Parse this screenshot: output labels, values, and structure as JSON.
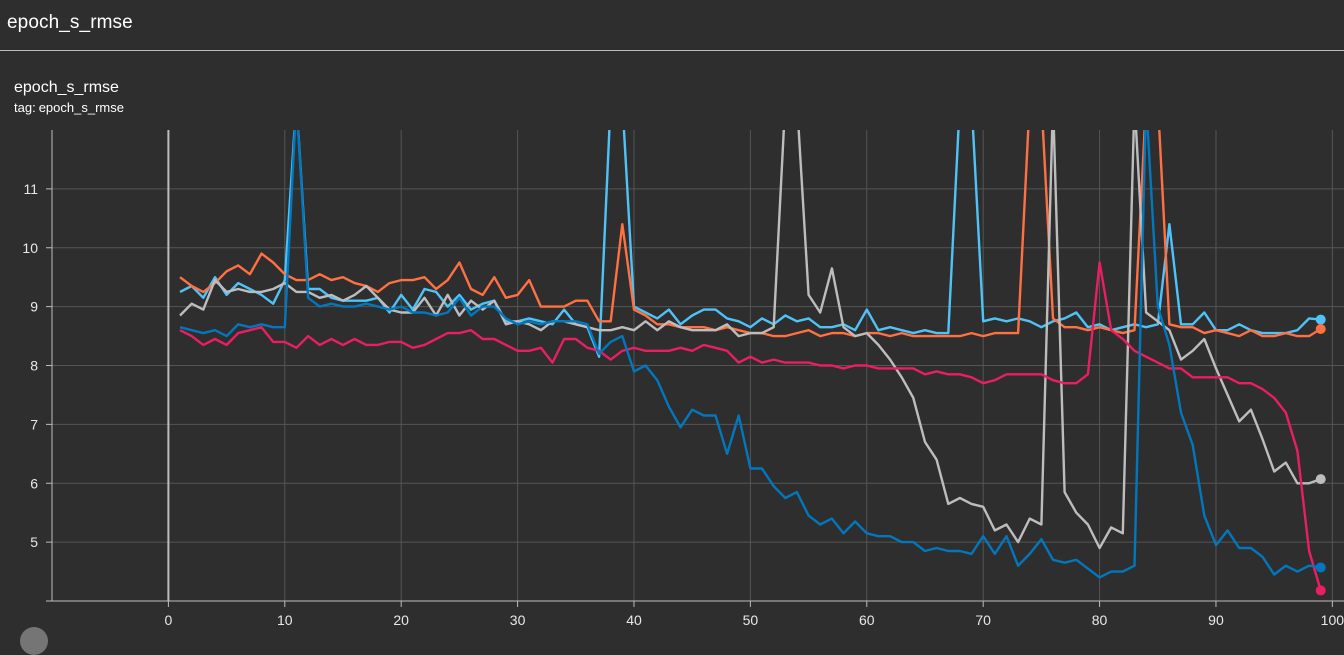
{
  "header": {
    "title": "epoch_s_rmse"
  },
  "card": {
    "title": "epoch_s_rmse",
    "tag_prefix": "tag:",
    "tag_value": "epoch_s_rmse"
  },
  "chart_data": {
    "type": "line",
    "title": "epoch_s_rmse",
    "xlabel": "",
    "ylabel": "",
    "xlim": [
      -10,
      101
    ],
    "ylim": [
      4.0,
      12.0
    ],
    "x_ticks": [
      0,
      10,
      20,
      30,
      40,
      50,
      60,
      70,
      80,
      90,
      100
    ],
    "y_ticks": [
      5,
      6,
      7,
      8,
      9,
      10,
      11
    ],
    "grid": true,
    "colors": {
      "background": "#2e2e2e",
      "grid": "#555555",
      "axis": "#bdbdbd"
    },
    "series": [
      {
        "color": "#4fc3f7",
        "x": [
          1,
          2,
          3,
          4,
          5,
          6,
          7,
          8,
          9,
          10,
          11,
          12,
          13,
          14,
          15,
          16,
          17,
          18,
          19,
          20,
          21,
          22,
          23,
          24,
          25,
          26,
          27,
          28,
          29,
          30,
          31,
          32,
          33,
          34,
          35,
          36,
          37,
          38,
          39,
          40,
          41,
          42,
          43,
          44,
          45,
          46,
          47,
          48,
          49,
          50,
          51,
          52,
          53,
          54,
          55,
          56,
          57,
          58,
          59,
          60,
          61,
          62,
          63,
          64,
          65,
          66,
          67,
          68,
          69,
          70,
          71,
          72,
          73,
          74,
          75,
          76,
          77,
          78,
          79,
          80,
          81,
          82,
          83,
          84,
          85,
          86,
          87,
          88,
          89,
          90,
          91,
          92,
          93,
          94,
          95,
          96,
          97,
          98,
          99
        ],
        "values": [
          9.25,
          9.35,
          9.15,
          9.5,
          9.2,
          9.4,
          9.3,
          9.2,
          9.05,
          9.45,
          12.5,
          9.3,
          9.3,
          9.15,
          9.1,
          9.1,
          9.1,
          9.15,
          8.9,
          9.2,
          8.95,
          9.3,
          9.25,
          9.0,
          9.2,
          8.95,
          9.05,
          9.1,
          8.75,
          8.75,
          8.8,
          8.75,
          8.7,
          8.95,
          8.7,
          8.65,
          8.15,
          12.5,
          12.5,
          9.0,
          8.9,
          8.8,
          8.95,
          8.7,
          8.85,
          8.95,
          8.95,
          8.8,
          8.75,
          8.65,
          8.8,
          8.7,
          8.85,
          8.75,
          8.8,
          8.65,
          8.65,
          8.7,
          8.6,
          8.95,
          8.6,
          8.65,
          8.6,
          8.55,
          8.6,
          8.55,
          8.55,
          12.5,
          12.5,
          8.75,
          8.8,
          8.75,
          8.8,
          8.75,
          8.65,
          8.75,
          8.8,
          8.9,
          8.65,
          8.7,
          8.6,
          8.65,
          8.7,
          8.65,
          8.7,
          10.4,
          8.7,
          8.7,
          8.9,
          8.6,
          8.6,
          8.7,
          8.6,
          8.55,
          8.55,
          8.55,
          8.6,
          8.8,
          8.78
        ]
      },
      {
        "color": "#ff7043",
        "x": [
          1,
          2,
          3,
          4,
          5,
          6,
          7,
          8,
          9,
          10,
          11,
          12,
          13,
          14,
          15,
          16,
          17,
          18,
          19,
          20,
          21,
          22,
          23,
          24,
          25,
          26,
          27,
          28,
          29,
          30,
          31,
          32,
          33,
          34,
          35,
          36,
          37,
          38,
          39,
          40,
          41,
          42,
          43,
          44,
          45,
          46,
          47,
          48,
          49,
          50,
          51,
          52,
          53,
          54,
          55,
          56,
          57,
          58,
          59,
          60,
          61,
          62,
          63,
          64,
          65,
          66,
          67,
          68,
          69,
          70,
          71,
          72,
          73,
          74,
          75,
          76,
          77,
          78,
          79,
          80,
          81,
          82,
          83,
          84,
          85,
          86,
          87,
          88,
          89,
          90,
          91,
          92,
          93,
          94,
          95,
          96,
          97,
          98,
          99
        ],
        "values": [
          9.5,
          9.35,
          9.25,
          9.4,
          9.6,
          9.7,
          9.55,
          9.9,
          9.75,
          9.55,
          9.45,
          9.45,
          9.55,
          9.45,
          9.5,
          9.4,
          9.35,
          9.25,
          9.4,
          9.45,
          9.45,
          9.5,
          9.3,
          9.45,
          9.75,
          9.3,
          9.2,
          9.5,
          9.15,
          9.2,
          9.45,
          9.0,
          9.0,
          9.0,
          9.1,
          9.1,
          8.75,
          8.75,
          10.4,
          8.95,
          8.85,
          8.7,
          8.7,
          8.65,
          8.65,
          8.65,
          8.6,
          8.65,
          8.6,
          8.55,
          8.55,
          8.5,
          8.5,
          8.55,
          8.6,
          8.5,
          8.55,
          8.55,
          8.5,
          8.55,
          8.55,
          8.5,
          8.55,
          8.5,
          8.5,
          8.5,
          8.5,
          8.5,
          8.55,
          8.5,
          8.55,
          8.55,
          8.55,
          12.5,
          12.5,
          8.8,
          8.65,
          8.65,
          8.6,
          8.65,
          8.6,
          8.55,
          8.6,
          12.5,
          12.5,
          8.7,
          8.65,
          8.65,
          8.55,
          8.6,
          8.55,
          8.5,
          8.6,
          8.5,
          8.5,
          8.55,
          8.5,
          8.5,
          8.62
        ]
      },
      {
        "color": "#bdbdbd",
        "x": [
          1,
          2,
          3,
          4,
          5,
          6,
          7,
          8,
          9,
          10,
          11,
          12,
          13,
          14,
          15,
          16,
          17,
          18,
          19,
          20,
          21,
          22,
          23,
          24,
          25,
          26,
          27,
          28,
          29,
          30,
          31,
          32,
          33,
          34,
          35,
          36,
          37,
          38,
          39,
          40,
          41,
          42,
          43,
          44,
          45,
          46,
          47,
          48,
          49,
          50,
          51,
          52,
          53,
          54,
          55,
          56,
          57,
          58,
          59,
          60,
          61,
          62,
          63,
          64,
          65,
          66,
          67,
          68,
          69,
          70,
          71,
          72,
          73,
          74,
          75,
          76,
          77,
          78,
          79,
          80,
          81,
          82,
          83,
          84,
          85,
          86,
          87,
          88,
          89,
          90,
          91,
          92,
          93,
          94,
          95,
          96,
          97,
          98,
          99
        ],
        "values": [
          8.85,
          9.05,
          8.95,
          9.45,
          9.25,
          9.3,
          9.25,
          9.25,
          9.3,
          9.4,
          9.25,
          9.25,
          9.15,
          9.2,
          9.1,
          9.2,
          9.35,
          9.15,
          8.95,
          8.9,
          8.9,
          9.15,
          8.85,
          9.2,
          8.85,
          9.1,
          8.95,
          9.1,
          8.7,
          8.75,
          8.7,
          8.6,
          8.75,
          8.75,
          8.7,
          8.65,
          8.6,
          8.6,
          8.65,
          8.6,
          8.75,
          8.6,
          8.75,
          8.65,
          8.6,
          8.6,
          8.6,
          8.7,
          8.5,
          8.55,
          8.55,
          8.65,
          12.5,
          12.5,
          9.2,
          8.9,
          9.65,
          8.65,
          8.5,
          8.55,
          8.35,
          8.1,
          7.8,
          7.45,
          6.7,
          6.4,
          5.65,
          5.75,
          5.65,
          5.6,
          5.2,
          5.3,
          5.0,
          5.4,
          5.3,
          12.5,
          5.85,
          5.5,
          5.3,
          4.9,
          5.25,
          5.15,
          12.5,
          8.9,
          8.75,
          8.6,
          8.1,
          8.25,
          8.45,
          7.95,
          7.5,
          7.05,
          7.25,
          6.75,
          6.2,
          6.35,
          6.0,
          6.0,
          6.07
        ]
      },
      {
        "color": "#e91e63",
        "x": [
          1,
          2,
          3,
          4,
          5,
          6,
          7,
          8,
          9,
          10,
          11,
          12,
          13,
          14,
          15,
          16,
          17,
          18,
          19,
          20,
          21,
          22,
          23,
          24,
          25,
          26,
          27,
          28,
          29,
          30,
          31,
          32,
          33,
          34,
          35,
          36,
          37,
          38,
          39,
          40,
          41,
          42,
          43,
          44,
          45,
          46,
          47,
          48,
          49,
          50,
          51,
          52,
          53,
          54,
          55,
          56,
          57,
          58,
          59,
          60,
          61,
          62,
          63,
          64,
          65,
          66,
          67,
          68,
          69,
          70,
          71,
          72,
          73,
          74,
          75,
          76,
          77,
          78,
          79,
          80,
          81,
          82,
          83,
          84,
          85,
          86,
          87,
          88,
          89,
          90,
          91,
          92,
          93,
          94,
          95,
          96,
          97,
          98,
          99
        ],
        "values": [
          8.6,
          8.5,
          8.35,
          8.45,
          8.35,
          8.55,
          8.6,
          8.65,
          8.4,
          8.4,
          8.3,
          8.5,
          8.35,
          8.45,
          8.35,
          8.45,
          8.35,
          8.35,
          8.4,
          8.4,
          8.3,
          8.35,
          8.45,
          8.55,
          8.55,
          8.6,
          8.45,
          8.45,
          8.35,
          8.25,
          8.25,
          8.3,
          8.05,
          8.45,
          8.45,
          8.3,
          8.25,
          8.1,
          8.25,
          8.3,
          8.25,
          8.25,
          8.25,
          8.3,
          8.25,
          8.35,
          8.3,
          8.25,
          8.05,
          8.15,
          8.05,
          8.1,
          8.05,
          8.05,
          8.05,
          8.0,
          8.0,
          7.95,
          8.0,
          8.0,
          7.95,
          7.95,
          7.95,
          7.95,
          7.85,
          7.9,
          7.85,
          7.85,
          7.8,
          7.7,
          7.75,
          7.85,
          7.85,
          7.85,
          7.85,
          7.75,
          7.7,
          7.7,
          7.85,
          9.75,
          8.6,
          8.45,
          8.25,
          8.15,
          8.05,
          7.95,
          7.95,
          7.8,
          7.8,
          7.8,
          7.8,
          7.7,
          7.7,
          7.6,
          7.45,
          7.2,
          6.55,
          4.85,
          4.18
        ]
      },
      {
        "color": "#0277bd",
        "x": [
          1,
          2,
          3,
          4,
          5,
          6,
          7,
          8,
          9,
          10,
          11,
          12,
          13,
          14,
          15,
          16,
          17,
          18,
          19,
          20,
          21,
          22,
          23,
          24,
          25,
          26,
          27,
          28,
          29,
          30,
          31,
          32,
          33,
          34,
          35,
          36,
          37,
          38,
          39,
          40,
          41,
          42,
          43,
          44,
          45,
          46,
          47,
          48,
          49,
          50,
          51,
          52,
          53,
          54,
          55,
          56,
          57,
          58,
          59,
          60,
          61,
          62,
          63,
          64,
          65,
          66,
          67,
          68,
          69,
          70,
          71,
          72,
          73,
          74,
          75,
          76,
          77,
          78,
          79,
          80,
          81,
          82,
          83,
          84,
          85,
          86,
          87,
          88,
          89,
          90,
          91,
          92,
          93,
          94,
          95,
          96,
          97,
          98,
          99
        ],
        "values": [
          8.65,
          8.6,
          8.55,
          8.6,
          8.5,
          8.7,
          8.65,
          8.7,
          8.65,
          8.65,
          12.5,
          9.15,
          9.0,
          9.05,
          9.0,
          9.0,
          9.05,
          9.0,
          8.95,
          9.0,
          8.9,
          8.9,
          8.85,
          8.9,
          9.15,
          8.85,
          9.0,
          9.0,
          8.8,
          8.7,
          8.75,
          8.7,
          8.75,
          8.75,
          8.75,
          8.7,
          8.2,
          8.4,
          8.5,
          7.9,
          8.0,
          7.75,
          7.3,
          6.95,
          7.25,
          7.15,
          7.15,
          6.5,
          7.15,
          6.25,
          6.25,
          5.95,
          5.75,
          5.85,
          5.45,
          5.3,
          5.4,
          5.15,
          5.35,
          5.15,
          5.1,
          5.1,
          5.0,
          5.0,
          4.85,
          4.9,
          4.85,
          4.85,
          4.8,
          5.1,
          4.8,
          5.1,
          4.6,
          4.8,
          5.05,
          4.7,
          4.65,
          4.7,
          4.55,
          4.4,
          4.5,
          4.5,
          4.6,
          12.5,
          9.0,
          8.35,
          7.2,
          6.65,
          5.45,
          4.95,
          5.2,
          4.9,
          4.9,
          4.75,
          4.45,
          4.6,
          4.5,
          4.6,
          4.57
        ]
      }
    ]
  }
}
